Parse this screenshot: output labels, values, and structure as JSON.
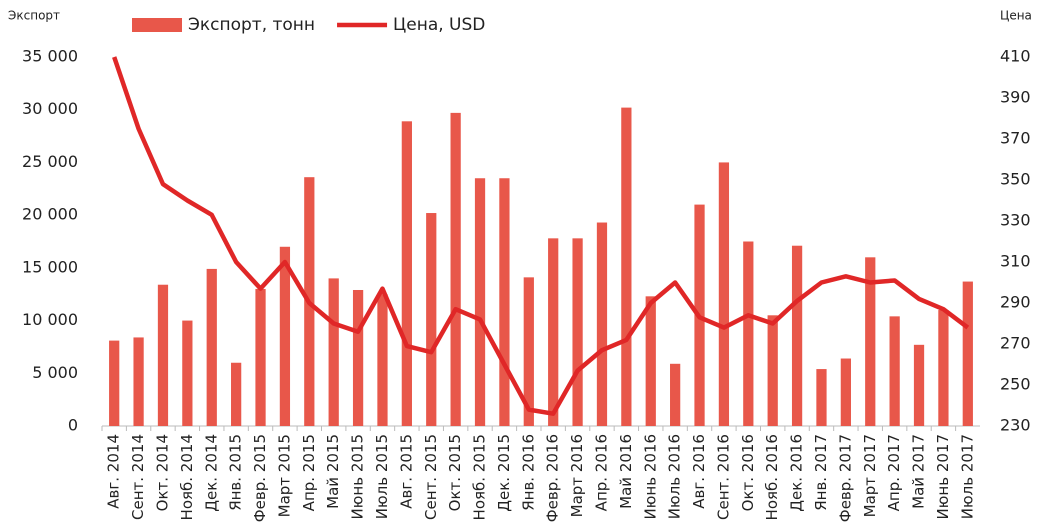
{
  "chart_data": {
    "type": "bar_line",
    "y_label": "Экспорт",
    "y2_label": "Цена",
    "categories": [
      "Авг. 2014",
      "Сент. 2014",
      "Окт. 2014",
      "Нояб. 2014",
      "Дек. 2014",
      "Янв. 2015",
      "Февр. 2015",
      "Март 2015",
      "Апр. 2015",
      "Май 2015",
      "Июнь 2015",
      "Июль 2015",
      "Авг. 2015",
      "Сент. 2015",
      "Окт. 2015",
      "Нояб. 2015",
      "Дек. 2015",
      "Янв. 2016",
      "Февр. 2016",
      "Март 2016",
      "Апр. 2016",
      "Май 2016",
      "Июнь 2016",
      "Июль 2016",
      "Авг. 2016",
      "Сент. 2016",
      "Окт. 2016",
      "Нояб. 2016",
      "Дек. 2016",
      "Янв. 2017",
      "Февр. 2017",
      "Март 2017",
      "Апр. 2017",
      "Май 2017",
      "Июнь 2017",
      "Июль 2017"
    ],
    "series": [
      {
        "name": "Экспорт, тонн",
        "color": "#e8574a",
        "kind": "bar",
        "values": [
          8100,
          8400,
          13400,
          10000,
          14900,
          6000,
          13000,
          17000,
          23600,
          14000,
          12900,
          12500,
          28900,
          20200,
          29700,
          23500,
          23500,
          14100,
          17800,
          17800,
          19300,
          30200,
          12300,
          5900,
          21000,
          25000,
          17500,
          10500,
          17100,
          5400,
          6400,
          16000,
          10400,
          7700,
          11000,
          13700
        ]
      },
      {
        "name": "Цена, USD",
        "color": "#e02727",
        "kind": "line",
        "axis": "y2",
        "values": [
          410,
          375,
          348,
          340,
          333,
          310,
          297,
          310,
          290,
          280,
          276,
          297,
          269,
          266,
          287,
          282,
          260,
          238,
          236,
          257,
          267,
          272,
          290,
          300,
          283,
          278,
          284,
          280,
          291,
          300,
          303,
          300,
          301,
          292,
          287,
          278
        ]
      }
    ],
    "ylim": [
      0,
      35000
    ],
    "yticks": [
      0,
      {
        "value": 5000,
        "label": "5 000"
      },
      {
        "value": 10000,
        "label": "10 000"
      },
      {
        "value": 15000,
        "label": "15 000"
      },
      {
        "value": 20000,
        "label": "20 000"
      },
      {
        "value": 25000,
        "label": "25 000"
      },
      {
        "value": 30000,
        "label": "30 000"
      },
      {
        "value": 35000,
        "label": "35 000"
      }
    ],
    "y2lim": [
      230,
      410
    ],
    "y2ticks": [
      230,
      250,
      270,
      290,
      310,
      330,
      350,
      370,
      390,
      410
    ]
  }
}
